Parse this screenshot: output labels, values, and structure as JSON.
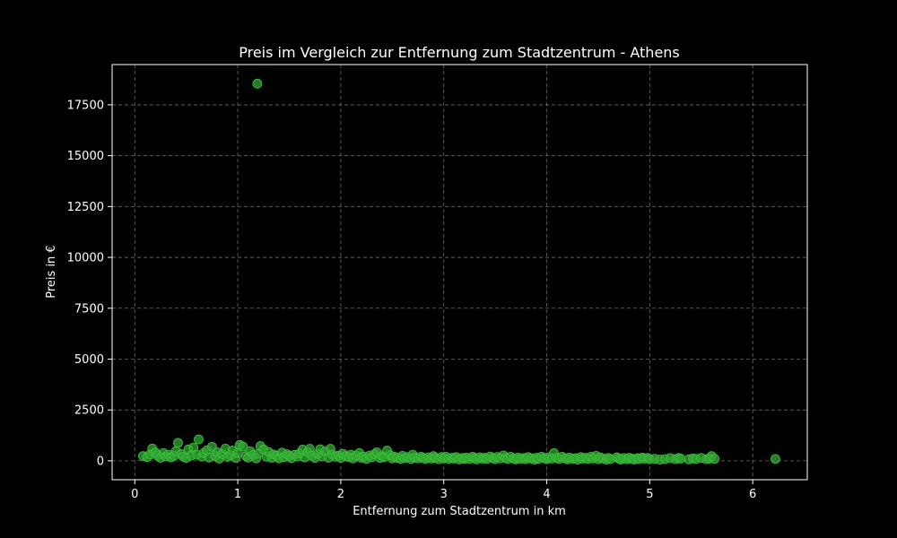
{
  "chart_data": {
    "type": "scatter",
    "title": "Preis im Vergleich zur Entfernung zum Stadtzentrum - Athens",
    "xlabel": "Entfernung zum Stadtzentrum in km",
    "ylabel": "Preis in €",
    "xlim": [
      -0.22,
      6.53
    ],
    "ylim": [
      -930,
      19480
    ],
    "xticks": [
      0,
      1,
      2,
      3,
      4,
      5,
      6
    ],
    "yticks": [
      0,
      2500,
      5000,
      7500,
      10000,
      12500,
      15000,
      17500
    ],
    "grid": true,
    "legend": "none",
    "colors": {
      "point": "#33a833",
      "edge": "#3ec43e",
      "grid": "#b0b0b0",
      "axes": "#ffffff"
    },
    "points": [
      [
        0.08,
        230
      ],
      [
        0.12,
        180
      ],
      [
        0.15,
        320
      ],
      [
        0.17,
        600
      ],
      [
        0.2,
        410
      ],
      [
        0.22,
        260
      ],
      [
        0.25,
        150
      ],
      [
        0.28,
        380
      ],
      [
        0.3,
        220
      ],
      [
        0.33,
        300
      ],
      [
        0.35,
        170
      ],
      [
        0.38,
        250
      ],
      [
        0.4,
        480
      ],
      [
        0.42,
        880
      ],
      [
        0.45,
        330
      ],
      [
        0.47,
        200
      ],
      [
        0.5,
        140
      ],
      [
        0.52,
        560
      ],
      [
        0.55,
        260
      ],
      [
        0.57,
        650
      ],
      [
        0.6,
        300
      ],
      [
        0.62,
        1050
      ],
      [
        0.65,
        210
      ],
      [
        0.67,
        380
      ],
      [
        0.7,
        520
      ],
      [
        0.72,
        160
      ],
      [
        0.75,
        690
      ],
      [
        0.78,
        240
      ],
      [
        0.8,
        420
      ],
      [
        0.82,
        110
      ],
      [
        0.85,
        330
      ],
      [
        0.88,
        600
      ],
      [
        0.9,
        190
      ],
      [
        0.93,
        270
      ],
      [
        0.95,
        500
      ],
      [
        0.98,
        140
      ],
      [
        1.0,
        380
      ],
      [
        1.02,
        780
      ],
      [
        1.05,
        700
      ],
      [
        1.08,
        230
      ],
      [
        1.1,
        160
      ],
      [
        1.12,
        470
      ],
      [
        1.15,
        290
      ],
      [
        1.18,
        120
      ],
      [
        1.19,
        18540
      ],
      [
        1.2,
        350
      ],
      [
        1.22,
        720
      ],
      [
        1.25,
        560
      ],
      [
        1.28,
        200
      ],
      [
        1.3,
        430
      ],
      [
        1.33,
        150
      ],
      [
        1.35,
        310
      ],
      [
        1.38,
        260
      ],
      [
        1.4,
        120
      ],
      [
        1.43,
        400
      ],
      [
        1.45,
        180
      ],
      [
        1.48,
        320
      ],
      [
        1.5,
        240
      ],
      [
        1.52,
        130
      ],
      [
        1.55,
        290
      ],
      [
        1.58,
        210
      ],
      [
        1.6,
        360
      ],
      [
        1.63,
        550
      ],
      [
        1.65,
        170
      ],
      [
        1.68,
        420
      ],
      [
        1.7,
        590
      ],
      [
        1.72,
        250
      ],
      [
        1.75,
        140
      ],
      [
        1.78,
        330
      ],
      [
        1.8,
        570
      ],
      [
        1.82,
        220
      ],
      [
        1.85,
        460
      ],
      [
        1.88,
        150
      ],
      [
        1.9,
        590
      ],
      [
        1.92,
        300
      ],
      [
        1.95,
        200
      ],
      [
        1.98,
        260
      ],
      [
        2.0,
        140
      ],
      [
        2.02,
        350
      ],
      [
        2.05,
        230
      ],
      [
        2.08,
        180
      ],
      [
        2.1,
        300
      ],
      [
        2.12,
        120
      ],
      [
        2.15,
        250
      ],
      [
        2.18,
        380
      ],
      [
        2.2,
        150
      ],
      [
        2.22,
        210
      ],
      [
        2.25,
        100
      ],
      [
        2.28,
        260
      ],
      [
        2.3,
        170
      ],
      [
        2.33,
        330
      ],
      [
        2.35,
        420
      ],
      [
        2.38,
        140
      ],
      [
        2.4,
        230
      ],
      [
        2.42,
        180
      ],
      [
        2.45,
        500
      ],
      [
        2.48,
        270
      ],
      [
        2.5,
        120
      ],
      [
        2.52,
        200
      ],
      [
        2.55,
        150
      ],
      [
        2.58,
        100
      ],
      [
        2.6,
        240
      ],
      [
        2.62,
        130
      ],
      [
        2.65,
        180
      ],
      [
        2.68,
        90
      ],
      [
        2.7,
        300
      ],
      [
        2.72,
        160
      ],
      [
        2.75,
        120
      ],
      [
        2.78,
        200
      ],
      [
        2.8,
        140
      ],
      [
        2.82,
        90
      ],
      [
        2.85,
        170
      ],
      [
        2.88,
        110
      ],
      [
        2.9,
        230
      ],
      [
        2.92,
        150
      ],
      [
        2.95,
        80
      ],
      [
        2.98,
        190
      ],
      [
        3.0,
        120
      ],
      [
        3.02,
        200
      ],
      [
        3.05,
        90
      ],
      [
        3.08,
        150
      ],
      [
        3.1,
        110
      ],
      [
        3.12,
        180
      ],
      [
        3.15,
        70
      ],
      [
        3.18,
        140
      ],
      [
        3.2,
        100
      ],
      [
        3.22,
        160
      ],
      [
        3.25,
        90
      ],
      [
        3.28,
        200
      ],
      [
        3.3,
        130
      ],
      [
        3.32,
        70
      ],
      [
        3.35,
        170
      ],
      [
        3.38,
        110
      ],
      [
        3.4,
        150
      ],
      [
        3.42,
        90
      ],
      [
        3.45,
        210
      ],
      [
        3.48,
        130
      ],
      [
        3.5,
        80
      ],
      [
        3.52,
        190
      ],
      [
        3.55,
        120
      ],
      [
        3.58,
        260
      ],
      [
        3.6,
        150
      ],
      [
        3.62,
        90
      ],
      [
        3.65,
        200
      ],
      [
        3.68,
        110
      ],
      [
        3.7,
        70
      ],
      [
        3.72,
        160
      ],
      [
        3.75,
        100
      ],
      [
        3.78,
        140
      ],
      [
        3.8,
        80
      ],
      [
        3.82,
        180
      ],
      [
        3.85,
        120
      ],
      [
        3.88,
        60
      ],
      [
        3.9,
        150
      ],
      [
        3.92,
        100
      ],
      [
        3.95,
        200
      ],
      [
        3.98,
        130
      ],
      [
        4.0,
        80
      ],
      [
        4.02,
        170
      ],
      [
        4.05,
        110
      ],
      [
        4.07,
        380
      ],
      [
        4.1,
        150
      ],
      [
        4.12,
        90
      ],
      [
        4.15,
        200
      ],
      [
        4.18,
        120
      ],
      [
        4.2,
        70
      ],
      [
        4.22,
        160
      ],
      [
        4.25,
        100
      ],
      [
        4.28,
        130
      ],
      [
        4.3,
        60
      ],
      [
        4.33,
        180
      ],
      [
        4.35,
        110
      ],
      [
        4.38,
        150
      ],
      [
        4.4,
        90
      ],
      [
        4.43,
        200
      ],
      [
        4.45,
        120
      ],
      [
        4.48,
        240
      ],
      [
        4.5,
        80
      ],
      [
        4.52,
        170
      ],
      [
        4.55,
        110
      ],
      [
        4.58,
        60
      ],
      [
        4.6,
        140
      ],
      [
        4.62,
        90
      ],
      [
        4.68,
        170
      ],
      [
        4.7,
        110
      ],
      [
        4.72,
        60
      ],
      [
        4.75,
        130
      ],
      [
        4.78,
        80
      ],
      [
        4.8,
        150
      ],
      [
        4.83,
        100
      ],
      [
        4.85,
        60
      ],
      [
        4.88,
        130
      ],
      [
        4.9,
        90
      ],
      [
        4.93,
        160
      ],
      [
        4.95,
        110
      ],
      [
        4.98,
        140
      ],
      [
        5.0,
        80
      ],
      [
        5.05,
        100
      ],
      [
        5.1,
        60
      ],
      [
        5.15,
        90
      ],
      [
        5.2,
        130
      ],
      [
        5.25,
        80
      ],
      [
        5.28,
        140
      ],
      [
        5.3,
        110
      ],
      [
        5.38,
        70
      ],
      [
        5.42,
        120
      ],
      [
        5.45,
        90
      ],
      [
        5.5,
        140
      ],
      [
        5.55,
        80
      ],
      [
        5.58,
        110
      ],
      [
        5.6,
        230
      ],
      [
        5.63,
        100
      ],
      [
        6.22,
        90
      ]
    ]
  }
}
